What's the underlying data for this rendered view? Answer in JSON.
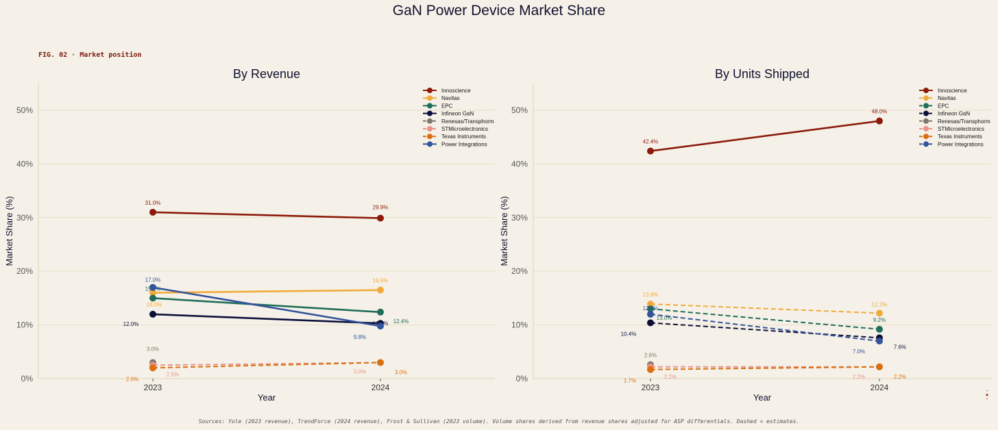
{
  "title": "GaN Power Device Market Share",
  "fig_label": "FIG. 02 · Market position",
  "source_note": "Sources: Yole (2023 revenue), TrendForce (2024 revenue), Frost & Sullivan (2023 volume). Volume shares derived from revenue shares adjusted for ASP differentials. Dashed = estimates.",
  "chart_data": [
    {
      "type": "line",
      "title": "By Revenue",
      "xlabel": "Year",
      "ylabel": "Market Share (%)",
      "categories": [
        "2023",
        "2024"
      ],
      "yticks": [
        "0%",
        "10%",
        "20%",
        "30%",
        "40%",
        "50%"
      ],
      "ylim": [
        0,
        55
      ],
      "grid": true,
      "legend": "top-right",
      "series": [
        {
          "name": "Innoscience",
          "color": "#8b1a0a",
          "dashed": false,
          "values": [
            31.0,
            29.9
          ],
          "labels": [
            "31.0%",
            "29.9%"
          ]
        },
        {
          "name": "Navitas",
          "color": "#f2a93b",
          "dashed": false,
          "values": [
            16.0,
            16.5
          ],
          "labels": [
            "16.0%",
            "16.5%"
          ]
        },
        {
          "name": "EPC",
          "color": "#1f6e58",
          "dashed": false,
          "values": [
            15.0,
            12.4
          ],
          "labels": [
            "15.0%",
            "12.4%"
          ]
        },
        {
          "name": "Infineon GaN",
          "color": "#0c0f3a",
          "dashed": false,
          "values": [
            12.0,
            10.3
          ],
          "labels": [
            "12.0%",
            "10.3%"
          ]
        },
        {
          "name": "Renesas/Transphorm",
          "color": "#7d786c",
          "dashed": true,
          "values": [
            3.0,
            null
          ],
          "labels": [
            "3.0%",
            ""
          ]
        },
        {
          "name": "STMicroelectronics",
          "color": "#e8928a",
          "dashed": true,
          "values": [
            2.5,
            3.0
          ],
          "labels": [
            "2.5%",
            "3.0%"
          ]
        },
        {
          "name": "Texas Instruments",
          "color": "#d9700f",
          "dashed": true,
          "values": [
            2.0,
            3.0
          ],
          "labels": [
            "2.0%",
            "3.0%"
          ]
        },
        {
          "name": "Power Integrations",
          "color": "#33539a",
          "dashed": false,
          "values": [
            17.0,
            9.8
          ],
          "labels": [
            "17.0%",
            "9.8%"
          ]
        }
      ]
    },
    {
      "type": "line",
      "title": "By Units Shipped",
      "xlabel": "Year",
      "ylabel": "Market Share (%)",
      "categories": [
        "2023",
        "2024"
      ],
      "yticks": [
        "0%",
        "10%",
        "20%",
        "30%",
        "40%",
        "50%"
      ],
      "ylim": [
        0,
        55
      ],
      "grid": true,
      "legend": "top-right",
      "series": [
        {
          "name": "Innoscience",
          "color": "#8b1a0a",
          "dashed": false,
          "values": [
            42.4,
            48.0
          ],
          "labels": [
            "42.4%",
            "48.0%"
          ]
        },
        {
          "name": "Navitas",
          "color": "#f2a93b",
          "dashed": true,
          "values": [
            13.9,
            12.2
          ],
          "labels": [
            "13.9%",
            "12.2%"
          ]
        },
        {
          "name": "EPC",
          "color": "#1f6e58",
          "dashed": true,
          "values": [
            13.0,
            9.2
          ],
          "labels": [
            "13.0%",
            "9.2%"
          ]
        },
        {
          "name": "Infineon GaN",
          "color": "#0c0f3a",
          "dashed": true,
          "values": [
            10.4,
            7.6
          ],
          "labels": [
            "10.4%",
            "7.6%"
          ]
        },
        {
          "name": "Renesas/Transphorm",
          "color": "#7d786c",
          "dashed": true,
          "values": [
            2.6,
            null
          ],
          "labels": [
            "2.6%",
            ""
          ]
        },
        {
          "name": "STMicroelectronics",
          "color": "#e8928a",
          "dashed": true,
          "values": [
            2.2,
            2.2
          ],
          "labels": [
            "2.2%",
            "2.2%"
          ]
        },
        {
          "name": "Texas Instruments",
          "color": "#d9700f",
          "dashed": true,
          "values": [
            1.7,
            2.2
          ],
          "labels": [
            "1.7%",
            "2.2%"
          ]
        },
        {
          "name": "Power Integrations",
          "color": "#33539a",
          "dashed": true,
          "values": [
            12.0,
            7.0
          ],
          "labels": [
            "12.0%",
            "7.0%"
          ]
        }
      ]
    }
  ]
}
